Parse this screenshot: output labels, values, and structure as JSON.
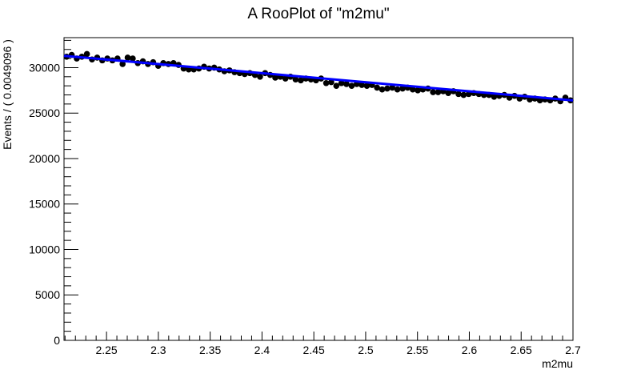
{
  "chart_data": {
    "type": "scatter",
    "title": "A RooPlot of \"m2mu\"",
    "xlabel": "m2mu",
    "ylabel": "Events / ( 0.0049096 )",
    "xlim": [
      2.209,
      2.7
    ],
    "ylim": [
      0,
      33300
    ],
    "x_ticks": [
      2.25,
      2.3,
      2.35,
      2.4,
      2.45,
      2.5,
      2.55,
      2.6,
      2.65,
      2.7
    ],
    "x_tick_labels": [
      "2.25",
      "2.3",
      "2.35",
      "2.4",
      "2.45",
      "2.5",
      "2.55",
      "2.6",
      "2.65",
      "2.7"
    ],
    "y_ticks": [
      0,
      5000,
      10000,
      15000,
      20000,
      25000,
      30000
    ],
    "y_tick_labels": [
      "0",
      "5000",
      "10000",
      "15000",
      "20000",
      "25000",
      "30000"
    ],
    "grid": false,
    "series": [
      {
        "kind": "points",
        "color": "#000000",
        "x": [
          2.2115,
          2.2164,
          2.2213,
          2.2262,
          2.2311,
          2.236,
          2.241,
          2.2459,
          2.2508,
          2.2557,
          2.2606,
          2.2655,
          2.2704,
          2.2753,
          2.2802,
          2.2851,
          2.29,
          2.295,
          2.2999,
          2.3048,
          2.3097,
          2.3146,
          2.3195,
          2.3244,
          2.3293,
          2.3342,
          2.3391,
          2.3441,
          2.349,
          2.3539,
          2.3588,
          2.3637,
          2.3686,
          2.3735,
          2.3784,
          2.3833,
          2.3883,
          2.3932,
          2.3981,
          2.403,
          2.4079,
          2.4128,
          2.4177,
          2.4226,
          2.4275,
          2.4324,
          2.4374,
          2.4423,
          2.4472,
          2.4521,
          2.457,
          2.4619,
          2.4668,
          2.4717,
          2.4766,
          2.4815,
          2.4865,
          2.4914,
          2.4963,
          2.5012,
          2.5061,
          2.511,
          2.5159,
          2.5208,
          2.5257,
          2.5306,
          2.5356,
          2.5405,
          2.5454,
          2.5503,
          2.5552,
          2.5601,
          2.565,
          2.5699,
          2.5748,
          2.5797,
          2.5847,
          2.5896,
          2.5945,
          2.5994,
          2.6043,
          2.6092,
          2.6141,
          2.619,
          2.6239,
          2.6289,
          2.6338,
          2.6387,
          2.6436,
          2.6485,
          2.6534,
          2.6583,
          2.6632,
          2.6681,
          2.673,
          2.678,
          2.6829,
          2.6878,
          2.6927,
          2.6976
        ],
        "y": [
          31200,
          31400,
          31000,
          31200,
          31500,
          30900,
          31100,
          30800,
          31000,
          30800,
          31000,
          30400,
          31100,
          31000,
          30500,
          30700,
          30400,
          30600,
          30200,
          30500,
          30400,
          30500,
          30300,
          29900,
          29800,
          29800,
          29900,
          30100,
          29900,
          30000,
          29800,
          29600,
          29700,
          29500,
          29400,
          29300,
          29400,
          29200,
          29000,
          29400,
          29200,
          28900,
          29000,
          28800,
          29000,
          28700,
          28600,
          28800,
          28700,
          28600,
          28800,
          28300,
          28400,
          28000,
          28300,
          28200,
          28000,
          28200,
          28100,
          28000,
          28100,
          27800,
          27600,
          27700,
          27800,
          27600,
          27700,
          27800,
          27600,
          27500,
          27600,
          27700,
          27300,
          27300,
          27400,
          27200,
          27400,
          27100,
          27000,
          27100,
          27200,
          27100,
          27000,
          27000,
          26800,
          26900,
          27000,
          26700,
          26900,
          26600,
          26800,
          26500,
          26600,
          26400,
          26500,
          26400,
          26600,
          26300,
          26700,
          26400
        ]
      },
      {
        "kind": "line",
        "color": "#0000ff",
        "x": [
          2.209,
          2.7
        ],
        "y": [
          31300,
          26400
        ]
      }
    ]
  }
}
